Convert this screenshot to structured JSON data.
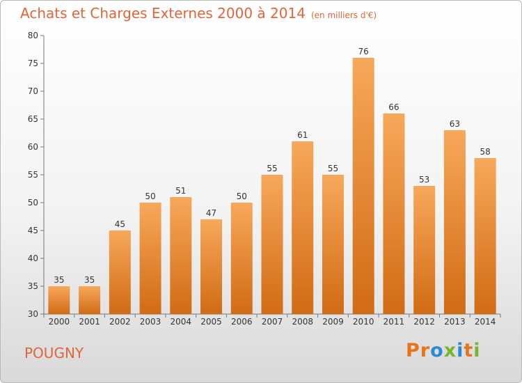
{
  "header": {
    "title": "Achats et Charges Externes 2000 à 2014",
    "unit": "(en milliers d'€)"
  },
  "footer": {
    "place": "POUGNY",
    "logo_letters": [
      "P",
      "r",
      "o",
      "x",
      "i",
      "t",
      "i"
    ],
    "logo_colors": [
      "#e8731a",
      "#e8731a",
      "#2b8ad6",
      "#74b72e",
      "#2b8ad6",
      "#e8731a",
      "#74b72e"
    ]
  },
  "colors": {
    "accent": "#e0663a",
    "bar_top": "#f7a85a",
    "bar_bottom": "#d16b14"
  },
  "chart_data": {
    "type": "bar",
    "categories": [
      "2000",
      "2001",
      "2002",
      "2003",
      "2004",
      "2005",
      "2006",
      "2007",
      "2008",
      "2009",
      "2010",
      "2011",
      "2012",
      "2013",
      "2014"
    ],
    "values": [
      35,
      35,
      45,
      50,
      51,
      47,
      50,
      55,
      61,
      55,
      76,
      66,
      53,
      63,
      58
    ],
    "ylim": [
      30,
      80
    ],
    "yticks": [
      30,
      35,
      40,
      45,
      50,
      55,
      60,
      65,
      70,
      75,
      80
    ],
    "grid": false
  }
}
